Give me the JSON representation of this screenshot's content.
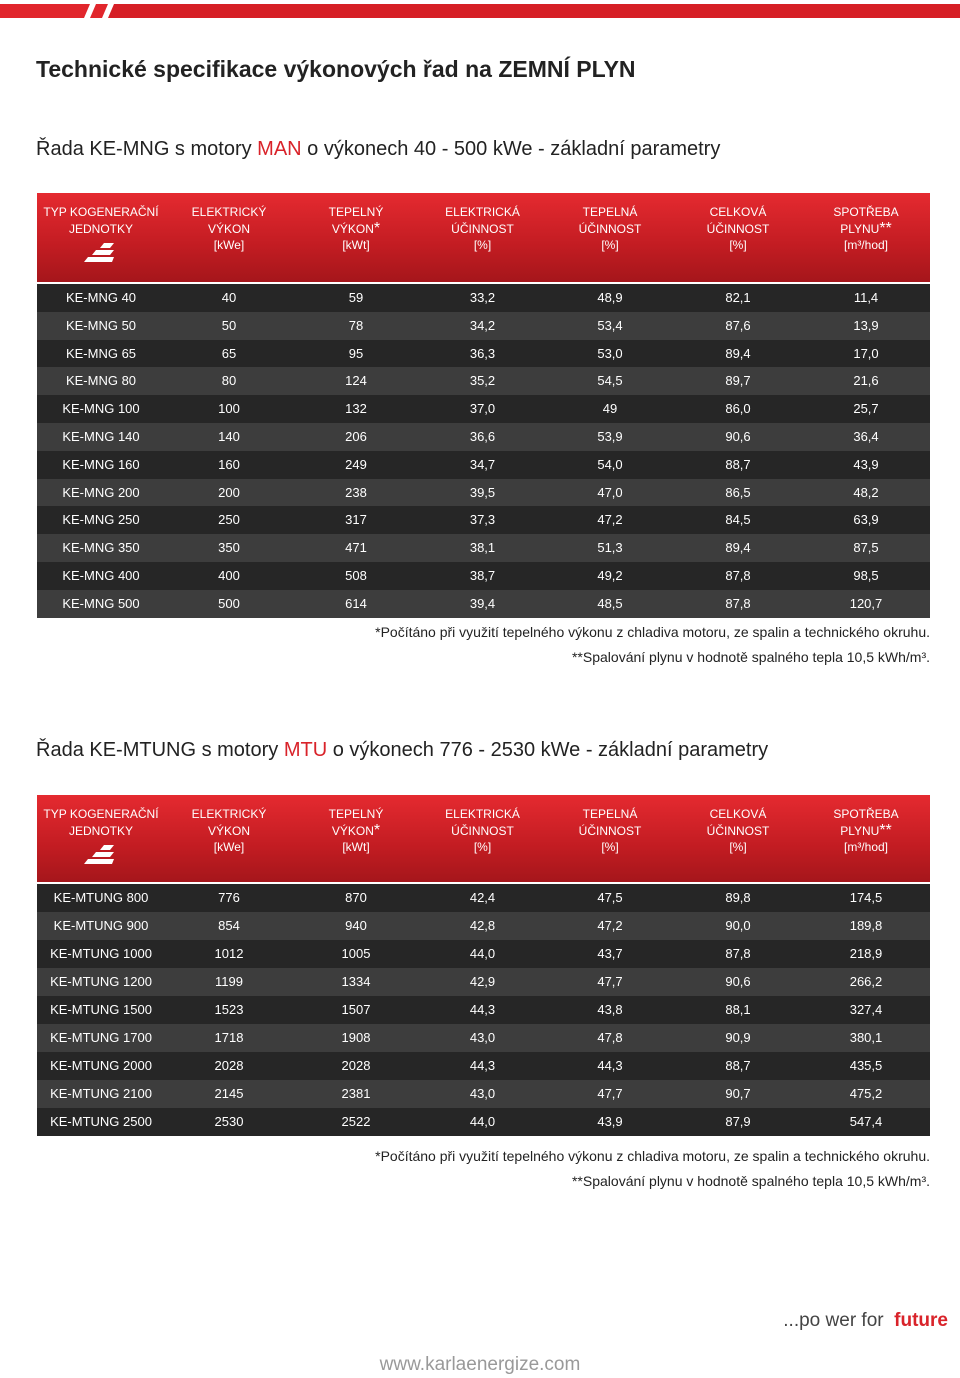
{
  "title": "Technické specifikace výkonových řad na ZEMNÍ PLYN",
  "sections": [
    {
      "heading": {
        "before": "Řada KE-MNG s motory ",
        "highlight": "MAN",
        "after": " o výkonech 40 - 500 kWe - základní parametry"
      },
      "table": {
        "header": [
          {
            "lines": [
              "TYP KOGENERAČNÍ",
              "JEDNOTKY"
            ]
          },
          {
            "lines": [
              "ELEKTRICKÝ",
              "VÝKON",
              "[kWe]"
            ]
          },
          {
            "lines": [
              "TEPELNÝ",
              "VÝKON",
              "[kWt]"
            ],
            "mark": "*"
          },
          {
            "lines": [
              "ELEKTRICKÁ",
              "ÚČINNOST",
              "[%]"
            ]
          },
          {
            "lines": [
              "TEPELNÁ",
              "ÚČINNOST",
              "[%]"
            ]
          },
          {
            "lines": [
              "CELKOVÁ",
              "ÚČINNOST",
              "[%]"
            ]
          },
          {
            "lines": [
              "SPOTŘEBA",
              "PLYNU",
              "[m³/hod]"
            ],
            "mark": "**"
          }
        ],
        "rows": [
          [
            "KE-MNG 40",
            "40",
            "59",
            "33,2",
            "48,9",
            "82,1",
            "11,4"
          ],
          [
            "KE-MNG 50",
            "50",
            "78",
            "34,2",
            "53,4",
            "87,6",
            "13,9"
          ],
          [
            "KE-MNG 65",
            "65",
            "95",
            "36,3",
            "53,0",
            "89,4",
            "17,0"
          ],
          [
            "KE-MNG 80",
            "80",
            "124",
            "35,2",
            "54,5",
            "89,7",
            "21,6"
          ],
          [
            "KE-MNG 100",
            "100",
            "132",
            "37,0",
            "49",
            "86,0",
            "25,7"
          ],
          [
            "KE-MNG 140",
            "140",
            "206",
            "36,6",
            "53,9",
            "90,6",
            "36,4"
          ],
          [
            "KE-MNG 160",
            "160",
            "249",
            "34,7",
            "54,0",
            "88,7",
            "43,9"
          ],
          [
            "KE-MNG 200",
            "200",
            "238",
            "39,5",
            "47,0",
            "86,5",
            "48,2"
          ],
          [
            "KE-MNG 250",
            "250",
            "317",
            "37,3",
            "47,2",
            "84,5",
            "63,9"
          ],
          [
            "KE-MNG 350",
            "350",
            "471",
            "38,1",
            "51,3",
            "89,4",
            "87,5"
          ],
          [
            "KE-MNG 400",
            "400",
            "508",
            "38,7",
            "49,2",
            "87,8",
            "98,5"
          ],
          [
            "KE-MNG 500",
            "500",
            "614",
            "39,4",
            "48,5",
            "87,8",
            "120,7"
          ]
        ]
      },
      "notes": [
        "*Počítáno při využití tepelného výkonu z chladiva motoru, ze spalin a technického okruhu.",
        "**Spalování plynu v hodnotě spalného tepla 10,5 kWh/m³."
      ]
    },
    {
      "heading": {
        "before": "Řada KE-MTUNG s motory ",
        "highlight": "MTU",
        "after": " o výkonech 776 - 2530 kWe - základní parametry"
      },
      "table": {
        "header": [
          {
            "lines": [
              "TYP KOGENERAČNÍ",
              "JEDNOTKY"
            ]
          },
          {
            "lines": [
              "ELEKTRICKÝ",
              "VÝKON",
              "[kWe]"
            ]
          },
          {
            "lines": [
              "TEPELNÝ",
              "VÝKON",
              "[kWt]"
            ],
            "mark": "*"
          },
          {
            "lines": [
              "ELEKTRICKÁ",
              "ÚČINNOST",
              "[%]"
            ]
          },
          {
            "lines": [
              "TEPELNÁ",
              "ÚČINNOST",
              "[%]"
            ]
          },
          {
            "lines": [
              "CELKOVÁ",
              "ÚČINNOST",
              "[%]"
            ]
          },
          {
            "lines": [
              "SPOTŘEBA",
              "PLYNU",
              "[m³/hod]"
            ],
            "mark": "**"
          }
        ],
        "rows": [
          [
            "KE-MTUNG 800",
            "776",
            "870",
            "42,4",
            "47,5",
            "89,8",
            "174,5"
          ],
          [
            "KE-MTUNG 900",
            "854",
            "940",
            "42,8",
            "47,2",
            "90,0",
            "189,8"
          ],
          [
            "KE-MTUNG 1000",
            "1012",
            "1005",
            "44,0",
            "43,7",
            "87,8",
            "218,9"
          ],
          [
            "KE-MTUNG 1200",
            "1199",
            "1334",
            "42,9",
            "47,7",
            "90,6",
            "266,2"
          ],
          [
            "KE-MTUNG 1500",
            "1523",
            "1507",
            "44,3",
            "43,8",
            "88,1",
            "327,4"
          ],
          [
            "KE-MTUNG 1700",
            "1718",
            "1908",
            "43,0",
            "47,8",
            "90,9",
            "380,1"
          ],
          [
            "KE-MTUNG 2000",
            "2028",
            "2028",
            "44,3",
            "44,3",
            "88,7",
            "435,5"
          ],
          [
            "KE-MTUNG 2100",
            "2145",
            "2381",
            "43,0",
            "47,7",
            "90,7",
            "475,2"
          ],
          [
            "KE-MTUNG 2500",
            "2530",
            "2522",
            "44,0",
            "43,9",
            "87,9",
            "547,4"
          ]
        ]
      },
      "notes": [
        "*Počítáno při využití tepelného výkonu z chladiva motoru, ze spalin a technického okruhu.",
        "**Spalování plynu v hodnotě spalného tepla 10,5 kWh/m³."
      ]
    }
  ],
  "footer": {
    "slogan": "...po wer for",
    "slogan_accent": "future",
    "website": "www.karlaenergize.com"
  }
}
